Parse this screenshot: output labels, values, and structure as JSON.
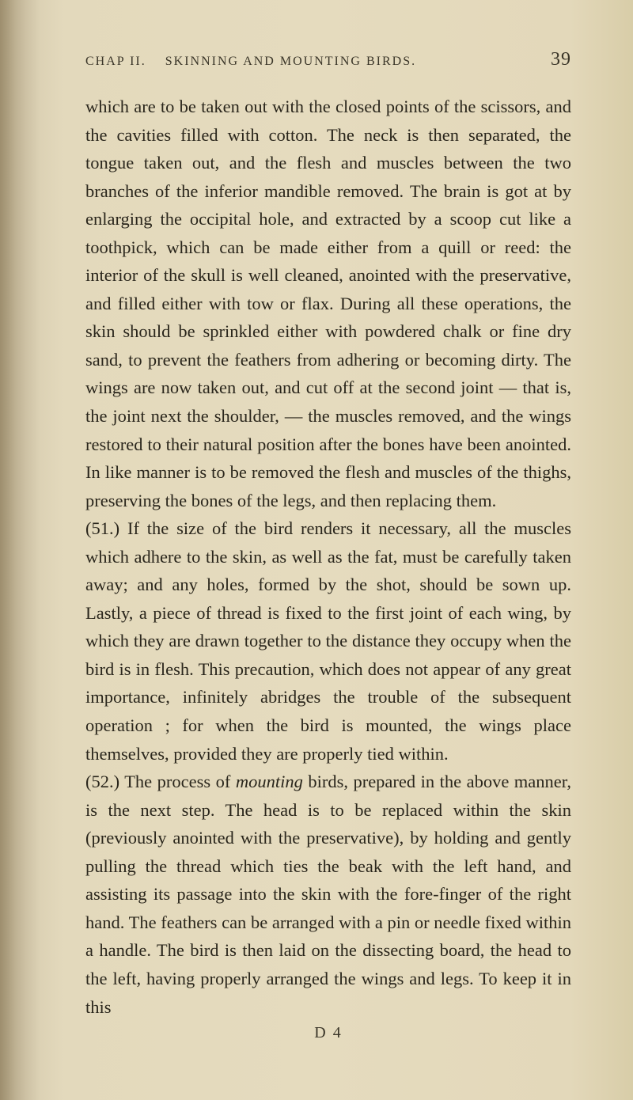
{
  "header": {
    "chapter": "CHAP II.",
    "title": "SKINNING AND MOUNTING BIRDS.",
    "pageNumber": "39"
  },
  "paragraphs": {
    "p1": "which are to be taken out with the closed points of the scissors, and the cavities filled with cotton. The neck is then separated, the tongue taken out, and the flesh and muscles between the two branches of the inferior mandible removed. The brain is got at by enlarging the occipital hole, and extracted by a scoop cut like a toothpick, which can be made either from a quill or reed: the interior of the skull is well cleaned, anointed with the preservative, and filled either with tow or flax. During all these operations, the skin should be sprinkled either with powdered chalk or fine dry sand, to prevent the feathers from adhering or becoming dirty. The wings are now taken out, and cut off at the second joint — that is, the joint next the shoulder, — the muscles removed, and the wings restored to their natural position after the bones have been anointed. In like manner is to be removed the flesh and muscles of the thighs, preserving the bones of the legs, and then replacing them.",
    "p2": "(51.) If the size of the bird renders it necessary, all the muscles which adhere to the skin, as well as the fat, must be carefully taken away; and any holes, formed by the shot, should be sown up. Lastly, a piece of thread is fixed to the first joint of each wing, by which they are drawn together to the distance they occupy when the bird is in flesh. This precaution, which does not appear of any great importance, infinitely abridges the trouble of the subsequent operation ; for when the bird is mounted, the wings place themselves, provided they are properly tied within.",
    "p3_prefix": "(52.) The process of ",
    "p3_italic": "mounting",
    "p3_suffix": " birds, prepared in the above manner, is the next step. The head is to be replaced within the skin (previously anointed with the preservative), by holding and gently pulling the thread which ties the beak with the left hand, and assisting its passage into the skin with the fore-finger of the right hand. The feathers can be arranged with a pin or needle fixed within a handle. The bird is then laid on the dissecting board, the head to the left, having properly arranged the wings and legs. To keep it in this"
  },
  "footer": {
    "signature": "D 4"
  },
  "styling": {
    "background_color": "#e0d5b8",
    "text_color": "#2a261c",
    "header_color": "#3a3528",
    "body_fontsize": 22.5,
    "header_fontsize": 16,
    "pagenum_fontsize": 24,
    "line_height": 1.58,
    "font_family": "Georgia, Times New Roman, serif"
  }
}
